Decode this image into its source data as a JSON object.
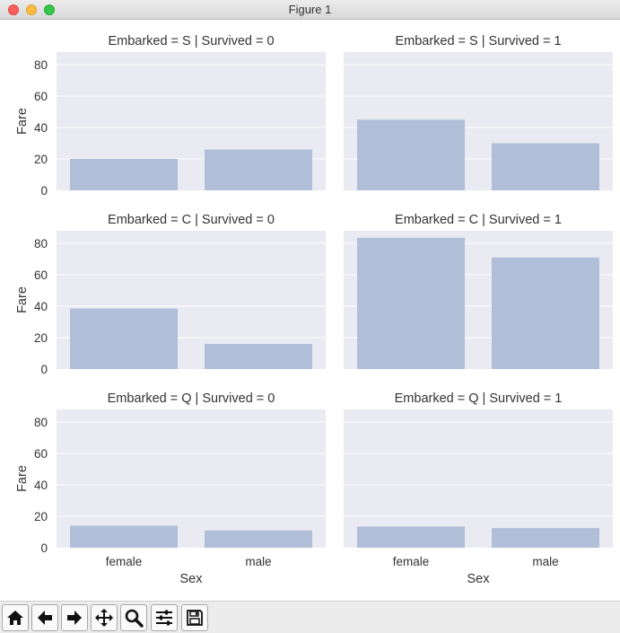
{
  "window": {
    "title": "Figure 1"
  },
  "toolbar": {
    "tools": [
      "home-icon",
      "back-arrow-icon",
      "forward-arrow-icon",
      "pan-icon",
      "zoom-icon",
      "subplots-config-icon",
      "save-icon"
    ]
  },
  "colors": {
    "bar": "#b0bfd7",
    "panel_bg": "#eaeaf2",
    "grid": "#ffffff",
    "text": "#333333"
  },
  "chart_data": [
    {
      "type": "bar",
      "title": "Embarked = S | Survived = 0",
      "categories": [
        "female",
        "male"
      ],
      "values": [
        20,
        26
      ],
      "xlabel": "",
      "ylabel": "Fare",
      "ylim": [
        0,
        88
      ],
      "yticks": [
        0,
        20,
        40,
        60,
        80
      ],
      "grid": true
    },
    {
      "type": "bar",
      "title": "Embarked = S | Survived = 1",
      "categories": [
        "female",
        "male"
      ],
      "values": [
        45,
        30
      ],
      "xlabel": "",
      "ylabel": "",
      "ylim": [
        0,
        88
      ],
      "yticks": [
        0,
        20,
        40,
        60,
        80
      ],
      "grid": true
    },
    {
      "type": "bar",
      "title": "Embarked = C | Survived = 0",
      "categories": [
        "female",
        "male"
      ],
      "values": [
        38.5,
        16
      ],
      "xlabel": "",
      "ylabel": "Fare",
      "ylim": [
        0,
        88
      ],
      "yticks": [
        0,
        20,
        40,
        60,
        80
      ],
      "grid": true
    },
    {
      "type": "bar",
      "title": "Embarked = C | Survived = 1",
      "categories": [
        "female",
        "male"
      ],
      "values": [
        83.5,
        71
      ],
      "xlabel": "",
      "ylabel": "",
      "ylim": [
        0,
        88
      ],
      "yticks": [
        0,
        20,
        40,
        60,
        80
      ],
      "grid": true
    },
    {
      "type": "bar",
      "title": "Embarked = Q | Survived = 0",
      "categories": [
        "female",
        "male"
      ],
      "values": [
        14,
        11
      ],
      "xlabel": "Sex",
      "ylabel": "Fare",
      "ylim": [
        0,
        88
      ],
      "yticks": [
        0,
        20,
        40,
        60,
        80
      ],
      "grid": true
    },
    {
      "type": "bar",
      "title": "Embarked = Q | Survived = 1",
      "categories": [
        "female",
        "male"
      ],
      "values": [
        13.5,
        12.5
      ],
      "xlabel": "Sex",
      "ylabel": "",
      "ylim": [
        0,
        88
      ],
      "yticks": [
        0,
        20,
        40,
        60,
        80
      ],
      "grid": true
    }
  ]
}
